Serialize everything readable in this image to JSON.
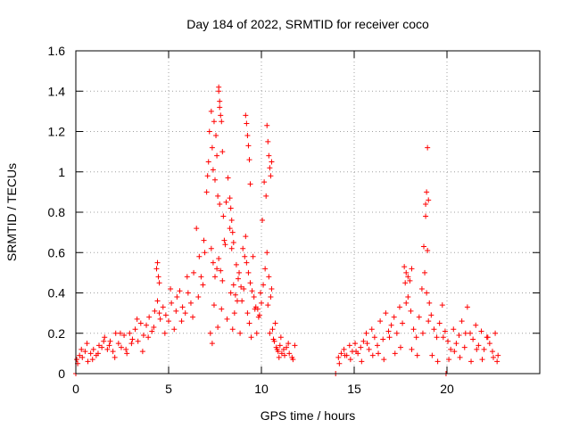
{
  "chart_data": {
    "type": "scatter",
    "title": "Day 184 of 2022, SRMTID for receiver coco",
    "xlabel": "GPS time / hours",
    "ylabel": "SRMTID / TECUs",
    "xlim": [
      0,
      25
    ],
    "ylim": [
      0,
      1.6
    ],
    "xticks": [
      0,
      5,
      10,
      15,
      20
    ],
    "xtick_labels": [
      "0",
      "5",
      "10",
      "15",
      "20"
    ],
    "yticks": [
      0,
      0.2,
      0.4,
      0.6,
      0.8,
      1,
      1.2,
      1.4,
      1.6
    ],
    "ytick_labels": [
      "0",
      "0.2",
      "0.4",
      "0.6",
      "0.8",
      "1",
      "1.2",
      "1.4",
      "1.6"
    ],
    "grid": true,
    "marker": "+",
    "color": "#ff0000",
    "series": [
      {
        "name": "SRMTID",
        "x": [
          0.05,
          0.2,
          0.35,
          0.5,
          0.65,
          0.8,
          0.95,
          1.1,
          1.25,
          1.4,
          1.55,
          1.7,
          1.85,
          2.0,
          2.15,
          2.3,
          2.45,
          2.6,
          2.75,
          2.9,
          3.05,
          3.2,
          3.35,
          3.5,
          3.65,
          3.8,
          3.95,
          4.1,
          4.25,
          4.4,
          4.55,
          4.7,
          4.85,
          5.0,
          5.15,
          5.3,
          5.45,
          5.6,
          5.75,
          5.9,
          6.05,
          6.2,
          6.35,
          6.5,
          6.65,
          6.75,
          6.85,
          6.95,
          7.05,
          7.15,
          7.2,
          7.3,
          7.4,
          7.5,
          7.6,
          7.7,
          7.8,
          7.9,
          8.0,
          8.1,
          8.2,
          8.3,
          8.4,
          8.5,
          8.6,
          8.7,
          8.8,
          8.9,
          9.0,
          9.1,
          9.2,
          9.3,
          9.4,
          9.5,
          9.6,
          9.7,
          9.8,
          9.9,
          10.0,
          10.1,
          10.2,
          10.3,
          10.4,
          10.5,
          10.6,
          10.7,
          10.8,
          10.9,
          11.0,
          11.1,
          11.2,
          11.35,
          11.5,
          11.65,
          11.8,
          14.15,
          14.3,
          14.45,
          14.6,
          14.75,
          14.9,
          15.05,
          15.2,
          15.35,
          15.5,
          15.65,
          15.8,
          15.95,
          16.1,
          16.25,
          16.4,
          16.55,
          16.7,
          16.85,
          17.0,
          17.15,
          17.3,
          17.45,
          17.6,
          17.75,
          17.9,
          18.05,
          18.2,
          18.35,
          18.5,
          18.65,
          18.75,
          18.85,
          18.95,
          19.05,
          19.15,
          19.3,
          19.45,
          19.6,
          19.75,
          19.9,
          20.05,
          20.2,
          20.35,
          20.5,
          20.65,
          20.8,
          20.95,
          21.1,
          21.25,
          21.4,
          21.55,
          21.7,
          21.85,
          22.0,
          22.15,
          22.3,
          22.45,
          22.6,
          22.75,
          0.1,
          0.3,
          0.6,
          0.9,
          1.2,
          1.5,
          1.8,
          2.1,
          2.4,
          2.7,
          3.0,
          3.3,
          3.6,
          3.9,
          4.2,
          4.5,
          4.8,
          5.1,
          5.4,
          5.7,
          6.0,
          6.3,
          6.6,
          6.9,
          7.1,
          7.25,
          7.35,
          7.45,
          7.65,
          7.75,
          7.85,
          7.95,
          8.05,
          8.15,
          8.35,
          8.45,
          8.55,
          8.65,
          8.75,
          8.85,
          8.95,
          9.05,
          9.15,
          9.25,
          9.35,
          9.45,
          9.55,
          9.65,
          9.75,
          9.85,
          9.95,
          10.05,
          10.15,
          10.25,
          10.35,
          10.45,
          10.55,
          10.65,
          10.75,
          10.85,
          10.95,
          11.05,
          11.25,
          11.45,
          11.7,
          14.2,
          14.5,
          14.8,
          15.1,
          15.4,
          15.7,
          16.0,
          16.3,
          16.6,
          16.9,
          17.2,
          17.5,
          17.8,
          18.1,
          18.4,
          18.7,
          18.8,
          18.9,
          19.0,
          19.2,
          19.5,
          19.8,
          20.1,
          20.4,
          20.7,
          21.0,
          21.3,
          21.6,
          21.9,
          22.2,
          22.5,
          22.7,
          7.3,
          7.35,
          7.4,
          7.45,
          7.5,
          7.55,
          7.6,
          7.65,
          7.7,
          7.75,
          7.8,
          9.15,
          9.2,
          9.25,
          9.3,
          9.35,
          9.4,
          10.3,
          10.35,
          10.4,
          10.45,
          10.5,
          10.55,
          18.85,
          18.9,
          18.95,
          19.0,
          8.3,
          8.35,
          8.4,
          8.45,
          8.5,
          7.7,
          7.75,
          7.85,
          7.9,
          4.35,
          4.4,
          4.45,
          4.5,
          17.7,
          17.8,
          17.9,
          18.0,
          18.1,
          0.0,
          14.0,
          19.95
        ],
        "y": [
          0.07,
          0.09,
          0.08,
          0.11,
          0.06,
          0.1,
          0.12,
          0.09,
          0.14,
          0.13,
          0.18,
          0.12,
          0.16,
          0.11,
          0.2,
          0.15,
          0.13,
          0.19,
          0.1,
          0.2,
          0.17,
          0.22,
          0.16,
          0.25,
          0.19,
          0.24,
          0.28,
          0.21,
          0.31,
          0.36,
          0.27,
          0.33,
          0.29,
          0.26,
          0.35,
          0.22,
          0.38,
          0.41,
          0.33,
          0.3,
          0.4,
          0.35,
          0.5,
          0.72,
          0.58,
          0.48,
          0.44,
          0.6,
          0.9,
          1.05,
          1.2,
          0.62,
          0.55,
          0.48,
          0.52,
          0.57,
          0.51,
          0.46,
          0.66,
          0.85,
          0.97,
          0.72,
          0.62,
          0.44,
          0.39,
          0.36,
          0.5,
          0.43,
          0.62,
          0.58,
          0.55,
          0.5,
          0.45,
          0.41,
          0.38,
          0.33,
          0.32,
          0.29,
          0.35,
          0.44,
          0.52,
          0.6,
          0.48,
          0.38,
          0.22,
          0.16,
          0.13,
          0.11,
          0.14,
          0.1,
          0.12,
          0.13,
          0.1,
          0.08,
          0.14,
          0.08,
          0.1,
          0.12,
          0.09,
          0.14,
          0.11,
          0.15,
          0.1,
          0.13,
          0.16,
          0.2,
          0.12,
          0.22,
          0.18,
          0.14,
          0.26,
          0.17,
          0.3,
          0.21,
          0.24,
          0.28,
          0.2,
          0.33,
          0.25,
          0.45,
          0.38,
          0.31,
          0.22,
          0.18,
          0.28,
          0.42,
          0.63,
          0.78,
          0.61,
          0.35,
          0.29,
          0.22,
          0.18,
          0.25,
          0.34,
          0.21,
          0.16,
          0.12,
          0.22,
          0.15,
          0.19,
          0.26,
          0.13,
          0.33,
          0.2,
          0.17,
          0.24,
          0.14,
          0.21,
          0.12,
          0.18,
          0.15,
          0.11,
          0.2,
          0.09,
          0.05,
          0.12,
          0.15,
          0.07,
          0.1,
          0.16,
          0.14,
          0.08,
          0.2,
          0.12,
          0.15,
          0.27,
          0.11,
          0.18,
          0.23,
          0.3,
          0.2,
          0.42,
          0.31,
          0.26,
          0.48,
          0.28,
          0.38,
          0.66,
          0.98,
          0.2,
          0.15,
          0.34,
          0.23,
          0.84,
          0.32,
          0.78,
          0.64,
          0.27,
          0.4,
          0.22,
          0.3,
          0.54,
          0.47,
          0.2,
          0.36,
          0.42,
          0.68,
          0.3,
          0.25,
          0.18,
          0.58,
          0.32,
          0.2,
          0.28,
          0.4,
          0.76,
          0.95,
          0.88,
          0.34,
          0.2,
          0.42,
          0.17,
          0.25,
          0.12,
          0.08,
          0.18,
          0.09,
          0.15,
          0.07,
          0.05,
          0.09,
          0.07,
          0.11,
          0.06,
          0.15,
          0.09,
          0.1,
          0.07,
          0.18,
          0.1,
          0.13,
          0.35,
          0.12,
          0.09,
          0.2,
          0.5,
          0.4,
          0.26,
          0.09,
          0.06,
          0.18,
          0.07,
          0.11,
          0.08,
          0.2,
          0.06,
          0.12,
          0.07,
          0.18,
          0.08,
          0.06,
          1.3,
          1.12,
          1.01,
          1.25,
          0.96,
          1.18,
          1.08,
          0.88,
          1.42,
          1.35,
          1.28,
          1.28,
          1.24,
          1.18,
          1.13,
          1.06,
          0.94,
          1.23,
          1.15,
          1.08,
          1.02,
          0.98,
          1.05,
          0.84,
          0.9,
          1.12,
          0.86,
          0.87,
          0.82,
          0.76,
          0.7,
          0.65,
          1.4,
          1.32,
          1.25,
          1.1,
          0.52,
          0.55,
          0.48,
          0.45,
          0.53,
          0.5,
          0.48,
          0.46,
          0.52,
          0.0,
          0.0,
          0.0
        ]
      }
    ]
  }
}
